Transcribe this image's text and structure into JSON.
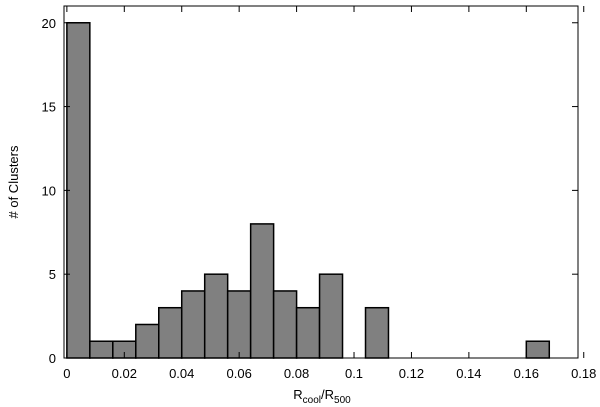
{
  "chart_data": {
    "type": "bar",
    "title": "",
    "xlabel_main": "R",
    "xlabel_sub1": "cool",
    "xlabel_mid": "/R",
    "xlabel_sub2": "500",
    "ylabel": "# of Clusters",
    "xlim": [
      -0.001,
      0.178
    ],
    "ylim": [
      0,
      21
    ],
    "bin_width": 0.008,
    "x_ticks": [
      0,
      0.02,
      0.04,
      0.06,
      0.08,
      0.1,
      0.12,
      0.14,
      0.16,
      0.18
    ],
    "x_tick_labels": [
      "0",
      "0.02",
      "0.04",
      "0.06",
      "0.08",
      "0.1",
      "0.12",
      "0.14",
      "0.16",
      "0.18"
    ],
    "y_ticks": [
      0,
      5,
      10,
      15,
      20
    ],
    "y_tick_labels": [
      "0",
      "5",
      "10",
      "15",
      "20"
    ],
    "grid": false,
    "bar_color": "#808080",
    "bars": [
      {
        "x": 0.004,
        "value": 20
      },
      {
        "x": 0.012,
        "value": 1
      },
      {
        "x": 0.02,
        "value": 1
      },
      {
        "x": 0.028,
        "value": 2
      },
      {
        "x": 0.036,
        "value": 3
      },
      {
        "x": 0.044,
        "value": 4
      },
      {
        "x": 0.052,
        "value": 5
      },
      {
        "x": 0.06,
        "value": 4
      },
      {
        "x": 0.068,
        "value": 8
      },
      {
        "x": 0.076,
        "value": 4
      },
      {
        "x": 0.084,
        "value": 3
      },
      {
        "x": 0.092,
        "value": 5
      },
      {
        "x": 0.1,
        "value": 0
      },
      {
        "x": 0.108,
        "value": 3
      },
      {
        "x": 0.116,
        "value": 0
      },
      {
        "x": 0.124,
        "value": 0
      },
      {
        "x": 0.132,
        "value": 0
      },
      {
        "x": 0.14,
        "value": 0
      },
      {
        "x": 0.148,
        "value": 0
      },
      {
        "x": 0.156,
        "value": 0
      },
      {
        "x": 0.164,
        "value": 1
      }
    ]
  }
}
